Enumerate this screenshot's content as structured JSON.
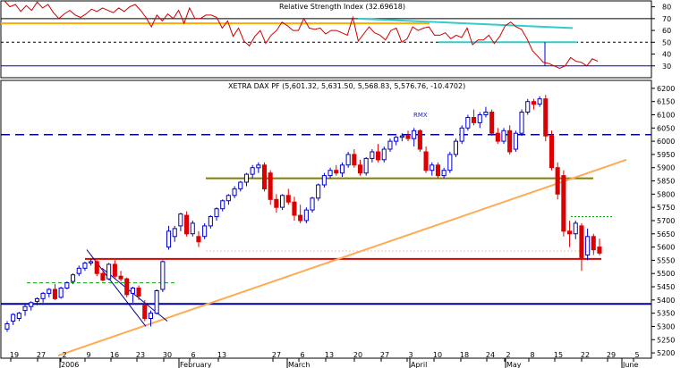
{
  "chart_data": [
    {
      "type": "line",
      "title": "Relative Strength Index (32.69618)",
      "ylim": [
        20,
        85
      ],
      "yticks": [
        30,
        40,
        50,
        60,
        70,
        80
      ],
      "series": [
        {
          "values": [
            85,
            80,
            82,
            76,
            81,
            77,
            84,
            79,
            82,
            75,
            70,
            74,
            77,
            73,
            71,
            74,
            78,
            76,
            79,
            77,
            75,
            79,
            76,
            80,
            82,
            77,
            71,
            63,
            73,
            68,
            74,
            70,
            77,
            66,
            79,
            70,
            70,
            73,
            73,
            71,
            62,
            68,
            55,
            62,
            51,
            47,
            55,
            60,
            49,
            56,
            60,
            67,
            64,
            60,
            60,
            70,
            62,
            61,
            62,
            57,
            60,
            60,
            58,
            56,
            71,
            51,
            57,
            63,
            58,
            56,
            52,
            60,
            62,
            50,
            53,
            63,
            60,
            62,
            63,
            56,
            56,
            58,
            53,
            56,
            54,
            62,
            48,
            52,
            52,
            56,
            49,
            55,
            64,
            67,
            63,
            61,
            53,
            43,
            38,
            33,
            32,
            30,
            28,
            30,
            37,
            34,
            33,
            30,
            36,
            34
          ]
        }
      ],
      "colors": {
        "rsi": "#cc0000",
        "overbought_line": "#ffaa00",
        "trend_line": "#33cccc",
        "support_line": "#0000cc"
      }
    },
    {
      "type": "candlestick",
      "title": "XETRA DAX PF (5,601.32, 5,631.50, 5,568.83, 5,576.76, -10.4702)",
      "annotation": "RMX",
      "ylim": [
        5180,
        6230
      ],
      "yticks": [
        5200,
        5250,
        5300,
        5350,
        5400,
        5450,
        5500,
        5550,
        5600,
        5650,
        5700,
        5750,
        5800,
        5850,
        5900,
        5950,
        6000,
        6050,
        6100,
        6150,
        6200
      ],
      "x_tick_labels": [
        "19",
        "27",
        "2",
        "9",
        "16",
        "23",
        "30",
        "6",
        "13",
        "27",
        "6",
        "13",
        "20",
        "27",
        "3",
        "10",
        "18",
        "24",
        "2",
        "8",
        "15",
        "22",
        "29",
        "5"
      ],
      "month_labels": [
        "2006",
        "February",
        "March",
        "April",
        "May",
        "June"
      ],
      "candles": [
        {
          "o": 5290,
          "h": 5320,
          "l": 5280,
          "c": 5310
        },
        {
          "o": 5320,
          "h": 5350,
          "l": 5305,
          "c": 5345
        },
        {
          "o": 5330,
          "h": 5355,
          "l": 5320,
          "c": 5350
        },
        {
          "o": 5360,
          "h": 5385,
          "l": 5340,
          "c": 5375
        },
        {
          "o": 5375,
          "h": 5395,
          "l": 5360,
          "c": 5390
        },
        {
          "o": 5395,
          "h": 5410,
          "l": 5380,
          "c": 5405
        },
        {
          "o": 5405,
          "h": 5430,
          "l": 5390,
          "c": 5425
        },
        {
          "o": 5425,
          "h": 5445,
          "l": 5410,
          "c": 5440
        },
        {
          "o": 5440,
          "h": 5460,
          "l": 5400,
          "c": 5405
        },
        {
          "o": 5410,
          "h": 5450,
          "l": 5405,
          "c": 5445
        },
        {
          "o": 5445,
          "h": 5470,
          "l": 5440,
          "c": 5465
        },
        {
          "o": 5470,
          "h": 5500,
          "l": 5460,
          "c": 5495
        },
        {
          "o": 5500,
          "h": 5530,
          "l": 5490,
          "c": 5520
        },
        {
          "o": 5520,
          "h": 5545,
          "l": 5510,
          "c": 5540
        },
        {
          "o": 5540,
          "h": 5555,
          "l": 5530,
          "c": 5545
        },
        {
          "o": 5545,
          "h": 5550,
          "l": 5490,
          "c": 5500
        },
        {
          "o": 5500,
          "h": 5520,
          "l": 5470,
          "c": 5475
        },
        {
          "o": 5480,
          "h": 5540,
          "l": 5475,
          "c": 5535
        },
        {
          "o": 5535,
          "h": 5550,
          "l": 5480,
          "c": 5490
        },
        {
          "o": 5490,
          "h": 5510,
          "l": 5470,
          "c": 5480
        },
        {
          "o": 5480,
          "h": 5485,
          "l": 5410,
          "c": 5420
        },
        {
          "o": 5425,
          "h": 5450,
          "l": 5390,
          "c": 5445
        },
        {
          "o": 5445,
          "h": 5455,
          "l": 5400,
          "c": 5415
        },
        {
          "o": 5380,
          "h": 5400,
          "l": 5320,
          "c": 5330
        },
        {
          "o": 5330,
          "h": 5360,
          "l": 5300,
          "c": 5350
        },
        {
          "o": 5350,
          "h": 5440,
          "l": 5345,
          "c": 5435
        },
        {
          "o": 5440,
          "h": 5550,
          "l": 5430,
          "c": 5545
        },
        {
          "o": 5600,
          "h": 5680,
          "l": 5590,
          "c": 5660
        },
        {
          "o": 5640,
          "h": 5680,
          "l": 5620,
          "c": 5670
        },
        {
          "o": 5680,
          "h": 5730,
          "l": 5660,
          "c": 5725
        },
        {
          "o": 5720,
          "h": 5735,
          "l": 5640,
          "c": 5650
        },
        {
          "o": 5650,
          "h": 5700,
          "l": 5640,
          "c": 5690
        },
        {
          "o": 5640,
          "h": 5660,
          "l": 5600,
          "c": 5620
        },
        {
          "o": 5640,
          "h": 5690,
          "l": 5630,
          "c": 5680
        },
        {
          "o": 5680,
          "h": 5720,
          "l": 5670,
          "c": 5715
        },
        {
          "o": 5715,
          "h": 5750,
          "l": 5700,
          "c": 5745
        },
        {
          "o": 5745,
          "h": 5780,
          "l": 5735,
          "c": 5775
        },
        {
          "o": 5775,
          "h": 5800,
          "l": 5760,
          "c": 5795
        },
        {
          "o": 5795,
          "h": 5830,
          "l": 5785,
          "c": 5820
        },
        {
          "o": 5820,
          "h": 5850,
          "l": 5810,
          "c": 5845
        },
        {
          "o": 5845,
          "h": 5880,
          "l": 5830,
          "c": 5875
        },
        {
          "o": 5875,
          "h": 5910,
          "l": 5860,
          "c": 5900
        },
        {
          "o": 5900,
          "h": 5920,
          "l": 5880,
          "c": 5910
        },
        {
          "o": 5910,
          "h": 5920,
          "l": 5810,
          "c": 5820
        },
        {
          "o": 5880,
          "h": 5890,
          "l": 5760,
          "c": 5780
        },
        {
          "o": 5780,
          "h": 5800,
          "l": 5730,
          "c": 5750
        },
        {
          "o": 5750,
          "h": 5800,
          "l": 5740,
          "c": 5795
        },
        {
          "o": 5795,
          "h": 5820,
          "l": 5760,
          "c": 5770
        },
        {
          "o": 5770,
          "h": 5790,
          "l": 5700,
          "c": 5720
        },
        {
          "o": 5720,
          "h": 5760,
          "l": 5690,
          "c": 5700
        },
        {
          "o": 5700,
          "h": 5750,
          "l": 5690,
          "c": 5740
        },
        {
          "o": 5740,
          "h": 5790,
          "l": 5730,
          "c": 5785
        },
        {
          "o": 5785,
          "h": 5840,
          "l": 5775,
          "c": 5835
        },
        {
          "o": 5835,
          "h": 5880,
          "l": 5825,
          "c": 5870
        },
        {
          "o": 5870,
          "h": 5900,
          "l": 5860,
          "c": 5890
        },
        {
          "o": 5890,
          "h": 5910,
          "l": 5870,
          "c": 5880
        },
        {
          "o": 5880,
          "h": 5920,
          "l": 5865,
          "c": 5910
        },
        {
          "o": 5910,
          "h": 5960,
          "l": 5900,
          "c": 5950
        },
        {
          "o": 5950,
          "h": 5970,
          "l": 5900,
          "c": 5910
        },
        {
          "o": 5910,
          "h": 5930,
          "l": 5870,
          "c": 5880
        },
        {
          "o": 5880,
          "h": 5940,
          "l": 5870,
          "c": 5935
        },
        {
          "o": 5935,
          "h": 5970,
          "l": 5920,
          "c": 5960
        },
        {
          "o": 5960,
          "h": 5990,
          "l": 5920,
          "c": 5930
        },
        {
          "o": 5930,
          "h": 5980,
          "l": 5920,
          "c": 5970
        },
        {
          "o": 5970,
          "h": 6010,
          "l": 5960,
          "c": 6000
        },
        {
          "o": 6000,
          "h": 6020,
          "l": 5985,
          "c": 6015
        },
        {
          "o": 6015,
          "h": 6030,
          "l": 6000,
          "c": 6020
        },
        {
          "o": 6020,
          "h": 6040,
          "l": 6000,
          "c": 6010
        },
        {
          "o": 6010,
          "h": 6050,
          "l": 5980,
          "c": 6040
        },
        {
          "o": 6040,
          "h": 6045,
          "l": 5960,
          "c": 5970
        },
        {
          "o": 5960,
          "h": 5980,
          "l": 5880,
          "c": 5890
        },
        {
          "o": 5890,
          "h": 5920,
          "l": 5870,
          "c": 5910
        },
        {
          "o": 5910,
          "h": 5920,
          "l": 5860,
          "c": 5870
        },
        {
          "o": 5870,
          "h": 5900,
          "l": 5860,
          "c": 5890
        },
        {
          "o": 5890,
          "h": 5960,
          "l": 5880,
          "c": 5950
        },
        {
          "o": 5950,
          "h": 6010,
          "l": 5940,
          "c": 6000
        },
        {
          "o": 6000,
          "h": 6060,
          "l": 5990,
          "c": 6050
        },
        {
          "o": 6050,
          "h": 6100,
          "l": 6040,
          "c": 6090
        },
        {
          "o": 6090,
          "h": 6120,
          "l": 6060,
          "c": 6070
        },
        {
          "o": 6070,
          "h": 6110,
          "l": 6050,
          "c": 6100
        },
        {
          "o": 6100,
          "h": 6130,
          "l": 6090,
          "c": 6110
        },
        {
          "o": 6110,
          "h": 6120,
          "l": 6020,
          "c": 6030
        },
        {
          "o": 6030,
          "h": 6050,
          "l": 5990,
          "c": 6000
        },
        {
          "o": 6000,
          "h": 6050,
          "l": 5990,
          "c": 6040
        },
        {
          "o": 6040,
          "h": 6060,
          "l": 5950,
          "c": 5960
        },
        {
          "o": 5970,
          "h": 6040,
          "l": 5960,
          "c": 6030
        },
        {
          "o": 6030,
          "h": 6120,
          "l": 6020,
          "c": 6110
        },
        {
          "o": 6110,
          "h": 6160,
          "l": 6100,
          "c": 6150
        },
        {
          "o": 6150,
          "h": 6160,
          "l": 6120,
          "c": 6140
        },
        {
          "o": 6140,
          "h": 6170,
          "l": 6130,
          "c": 6160
        },
        {
          "o": 6160,
          "h": 6175,
          "l": 6000,
          "c": 6020
        },
        {
          "o": 6020,
          "h": 6040,
          "l": 5890,
          "c": 5900
        },
        {
          "o": 5900,
          "h": 5920,
          "l": 5780,
          "c": 5800
        },
        {
          "o": 5870,
          "h": 5890,
          "l": 5640,
          "c": 5660
        },
        {
          "o": 5660,
          "h": 5700,
          "l": 5600,
          "c": 5650
        },
        {
          "o": 5650,
          "h": 5700,
          "l": 5630,
          "c": 5690
        },
        {
          "o": 5680,
          "h": 5690,
          "l": 5510,
          "c": 5560
        },
        {
          "o": 5570,
          "h": 5670,
          "l": 5550,
          "c": 5640
        },
        {
          "o": 5640,
          "h": 5650,
          "l": 5570,
          "c": 5590
        },
        {
          "o": 5600,
          "h": 5632,
          "l": 5569,
          "c": 5577
        }
      ],
      "horizontal_lines": [
        {
          "y": 6025,
          "style": "dashed",
          "color": "#000099"
        },
        {
          "y": 5860,
          "style": "solid",
          "color": "#808000"
        },
        {
          "y": 5555,
          "style": "solid",
          "color": "#dd0000"
        },
        {
          "y": 5385,
          "style": "solid",
          "color": "#000099"
        },
        {
          "y": 5715,
          "style": "dotted",
          "color": "#00aa00"
        },
        {
          "y": 5465,
          "style": "dashed",
          "color": "#00aa00"
        }
      ],
      "colors": {
        "up": "#0000cc",
        "down": "#dd0000",
        "trendline": "#ffaa55",
        "channel": "#000099"
      }
    }
  ]
}
